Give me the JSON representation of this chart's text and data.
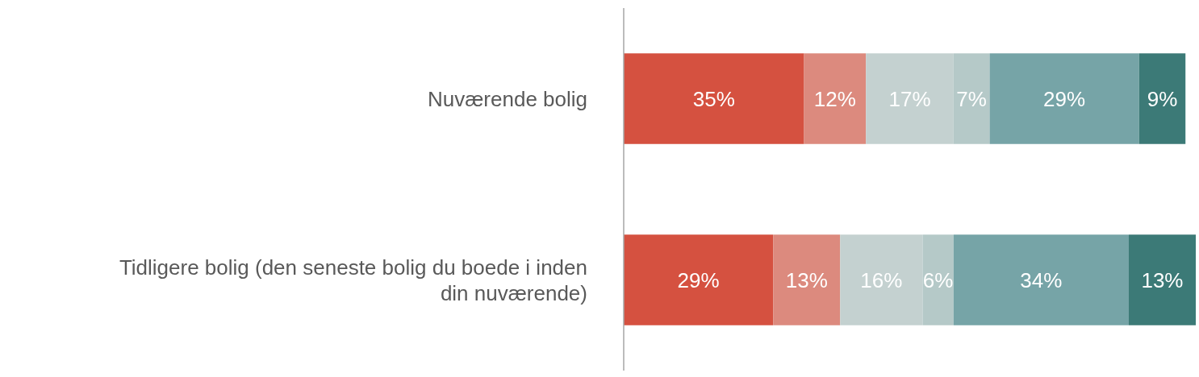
{
  "chart_data": {
    "type": "bar",
    "orientation": "horizontal",
    "stacked": true,
    "categories": [
      "Nuværende bolig",
      "Tidligere bolig (den seneste bolig du boede i inden din nuværende)"
    ],
    "series": [
      {
        "color": "#d55140",
        "values": [
          35,
          29
        ],
        "value_labels": [
          "35%",
          "29%"
        ]
      },
      {
        "color": "#dc8a7e",
        "values": [
          12,
          13
        ],
        "value_labels": [
          "12%",
          "13%"
        ]
      },
      {
        "color": "#c4d1d0",
        "values": [
          17,
          16
        ],
        "value_labels": [
          "17%",
          "16%"
        ]
      },
      {
        "color": "#b5c9c8",
        "values": [
          7,
          6
        ],
        "value_labels": [
          "7%",
          "6%"
        ]
      },
      {
        "color": "#76a4a7",
        "values": [
          29,
          34
        ],
        "value_labels": [
          "29%",
          "34%"
        ]
      },
      {
        "color": "#3c7a77",
        "values": [
          9,
          13
        ],
        "value_labels": [
          "9%",
          "13%"
        ]
      }
    ]
  }
}
